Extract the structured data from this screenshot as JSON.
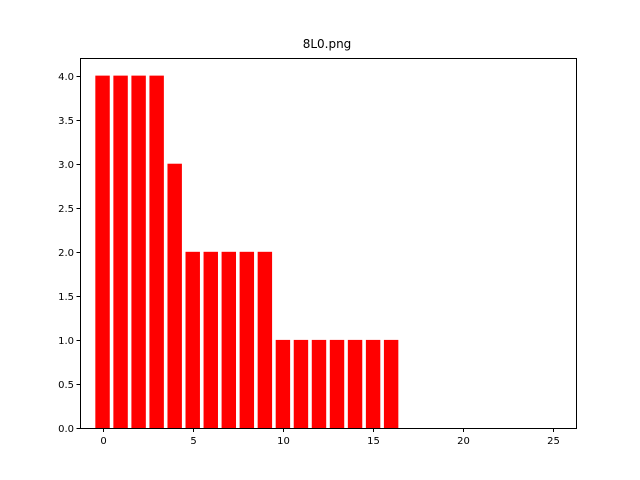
{
  "chart_data": {
    "type": "bar",
    "title": "8L0.png",
    "xlabel": "",
    "ylabel": "",
    "x": [
      0,
      1,
      2,
      3,
      4,
      5,
      6,
      7,
      8,
      9,
      10,
      11,
      12,
      13,
      14,
      15,
      16
    ],
    "values": [
      4,
      4,
      4,
      4,
      3,
      2,
      2,
      2,
      2,
      2,
      1,
      1,
      1,
      1,
      1,
      1,
      1
    ],
    "bar_width": 0.8,
    "xlim": [
      -1.25,
      26.25
    ],
    "ylim": [
      0,
      4.2
    ],
    "xticks": [
      0,
      5,
      10,
      15,
      20,
      25
    ],
    "xtick_labels": [
      "0",
      "5",
      "10",
      "15",
      "20",
      "25"
    ],
    "yticks": [
      0,
      0.5,
      1,
      1.5,
      2,
      2.5,
      3,
      3.5,
      4
    ],
    "ytick_labels": [
      "0.0",
      "0.5",
      "1.0",
      "1.5",
      "2.0",
      "2.5",
      "3.0",
      "3.5",
      "4.0"
    ],
    "bar_color": "#ff0000",
    "grid": false,
    "legend": "none"
  }
}
